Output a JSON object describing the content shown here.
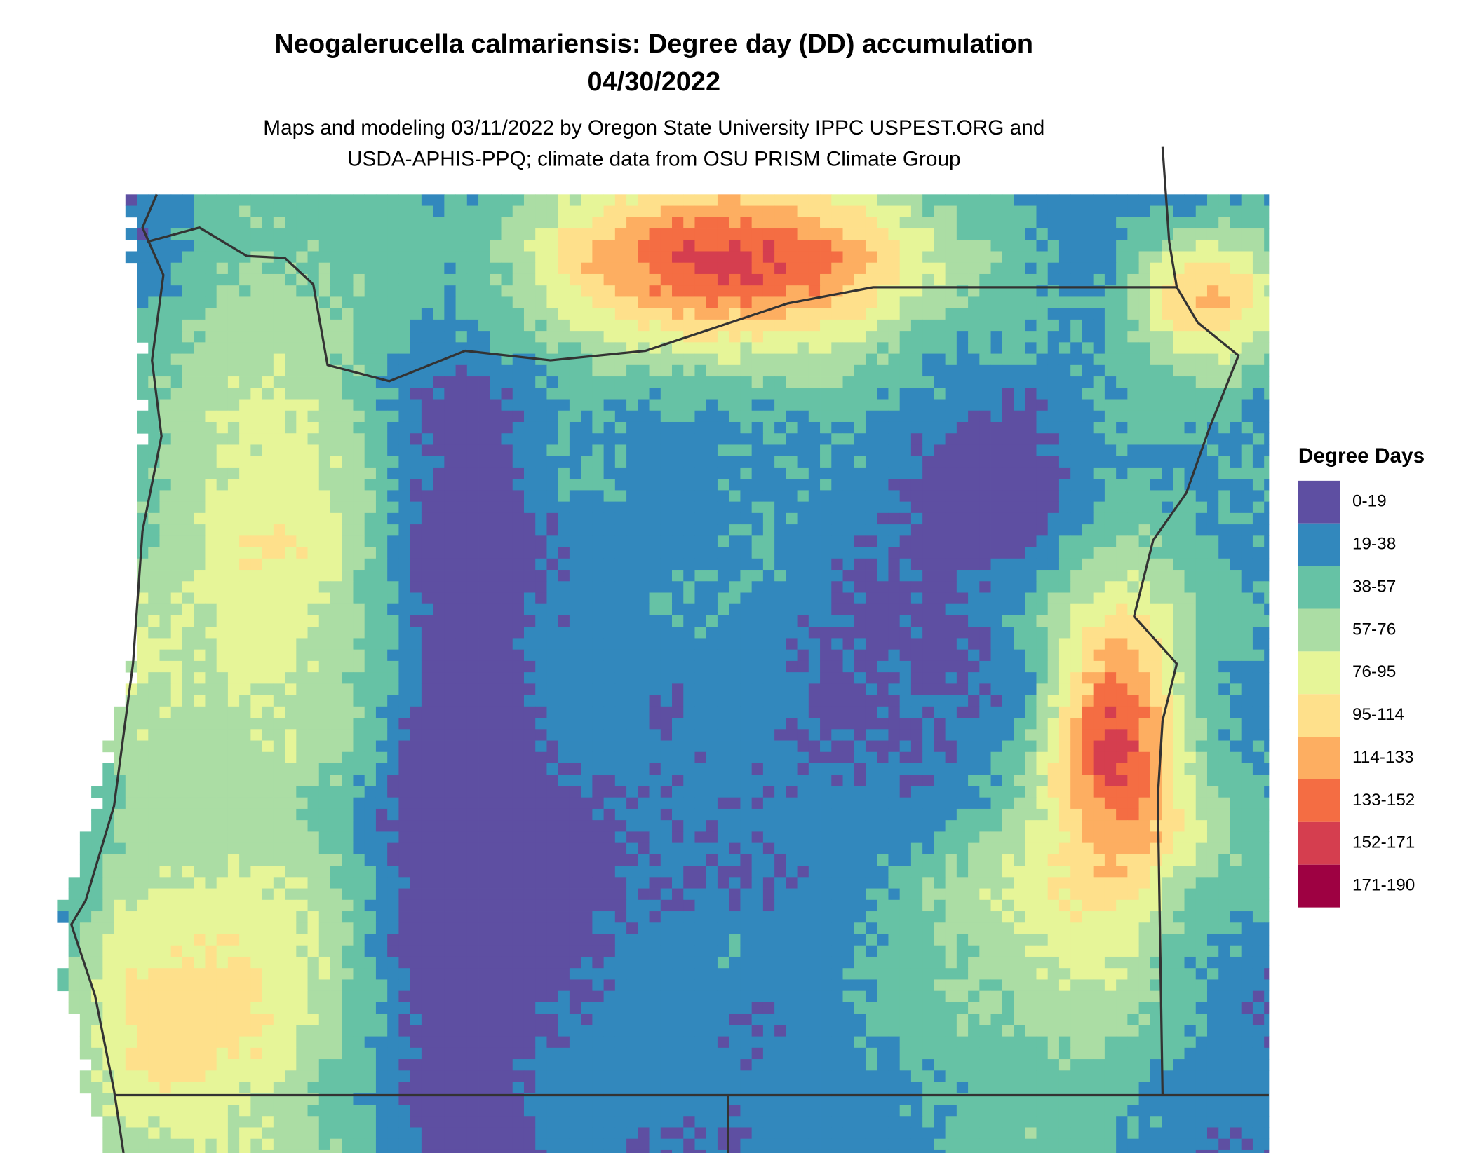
{
  "header": {
    "title": [
      "Neogalerucella calmariensis: Degree day (DD) accumulation",
      "04/30/2022"
    ],
    "subtitle": [
      "Maps and modeling 03/11/2022 by Oregon State University IPPC USPEST.ORG and",
      "USDA-APHIS-PPQ; climate data from OSU PRISM Climate Group"
    ]
  },
  "legend": {
    "title": "Degree Days",
    "items": [
      {
        "label": "0-19",
        "color": "#5e4fa2"
      },
      {
        "label": "19-38",
        "color": "#3288bd"
      },
      {
        "label": "38-57",
        "color": "#66c2a5"
      },
      {
        "label": "57-76",
        "color": "#abdda4"
      },
      {
        "label": "76-95",
        "color": "#e6f598"
      },
      {
        "label": "95-114",
        "color": "#fee08b"
      },
      {
        "label": "114-133",
        "color": "#fdae61"
      },
      {
        "label": "133-152",
        "color": "#f46d43"
      },
      {
        "label": "152-171",
        "color": "#d53e4f"
      },
      {
        "label": "171-190",
        "color": "#9e0142"
      }
    ]
  }
}
